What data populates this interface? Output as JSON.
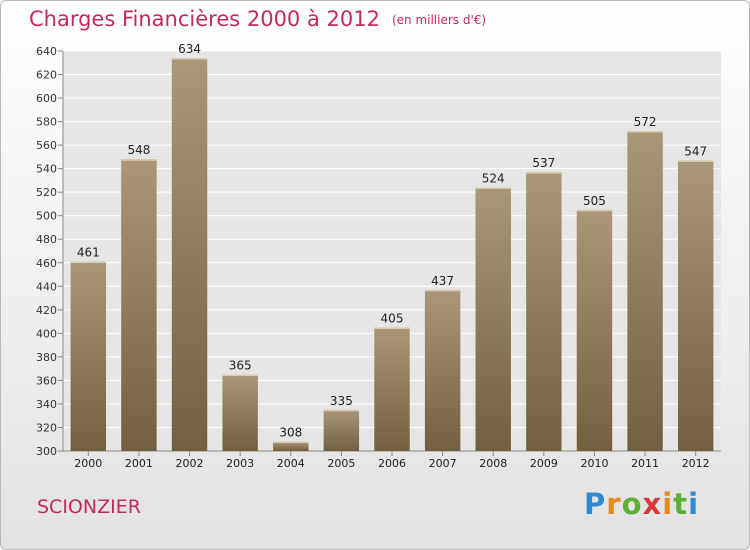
{
  "header": {
    "title": "Charges Financières 2000 à 2012",
    "subtitle": "(en milliers d'€)"
  },
  "footer": {
    "city": "SCIONZIER",
    "logo_text": "Proxiti"
  },
  "colors": {
    "title": "#c4295e",
    "bar_top": "#a99778",
    "bar_bottom": "#74603f",
    "grid": "#ffffff"
  },
  "chart_data": {
    "type": "bar",
    "title": "Charges Financières 2000 à 2012",
    "subtitle": "(en milliers d'€)",
    "categories": [
      "2000",
      "2001",
      "2002",
      "2003",
      "2004",
      "2005",
      "2006",
      "2007",
      "2008",
      "2009",
      "2010",
      "2011",
      "2012"
    ],
    "values": [
      461,
      548,
      634,
      365,
      308,
      335,
      405,
      437,
      524,
      537,
      505,
      572,
      547
    ],
    "ylim": [
      300,
      640
    ],
    "yticks": [
      300,
      320,
      340,
      360,
      380,
      400,
      420,
      440,
      460,
      480,
      500,
      520,
      540,
      560,
      580,
      600,
      620,
      640
    ],
    "grid": true,
    "xlabel": "",
    "ylabel": ""
  }
}
